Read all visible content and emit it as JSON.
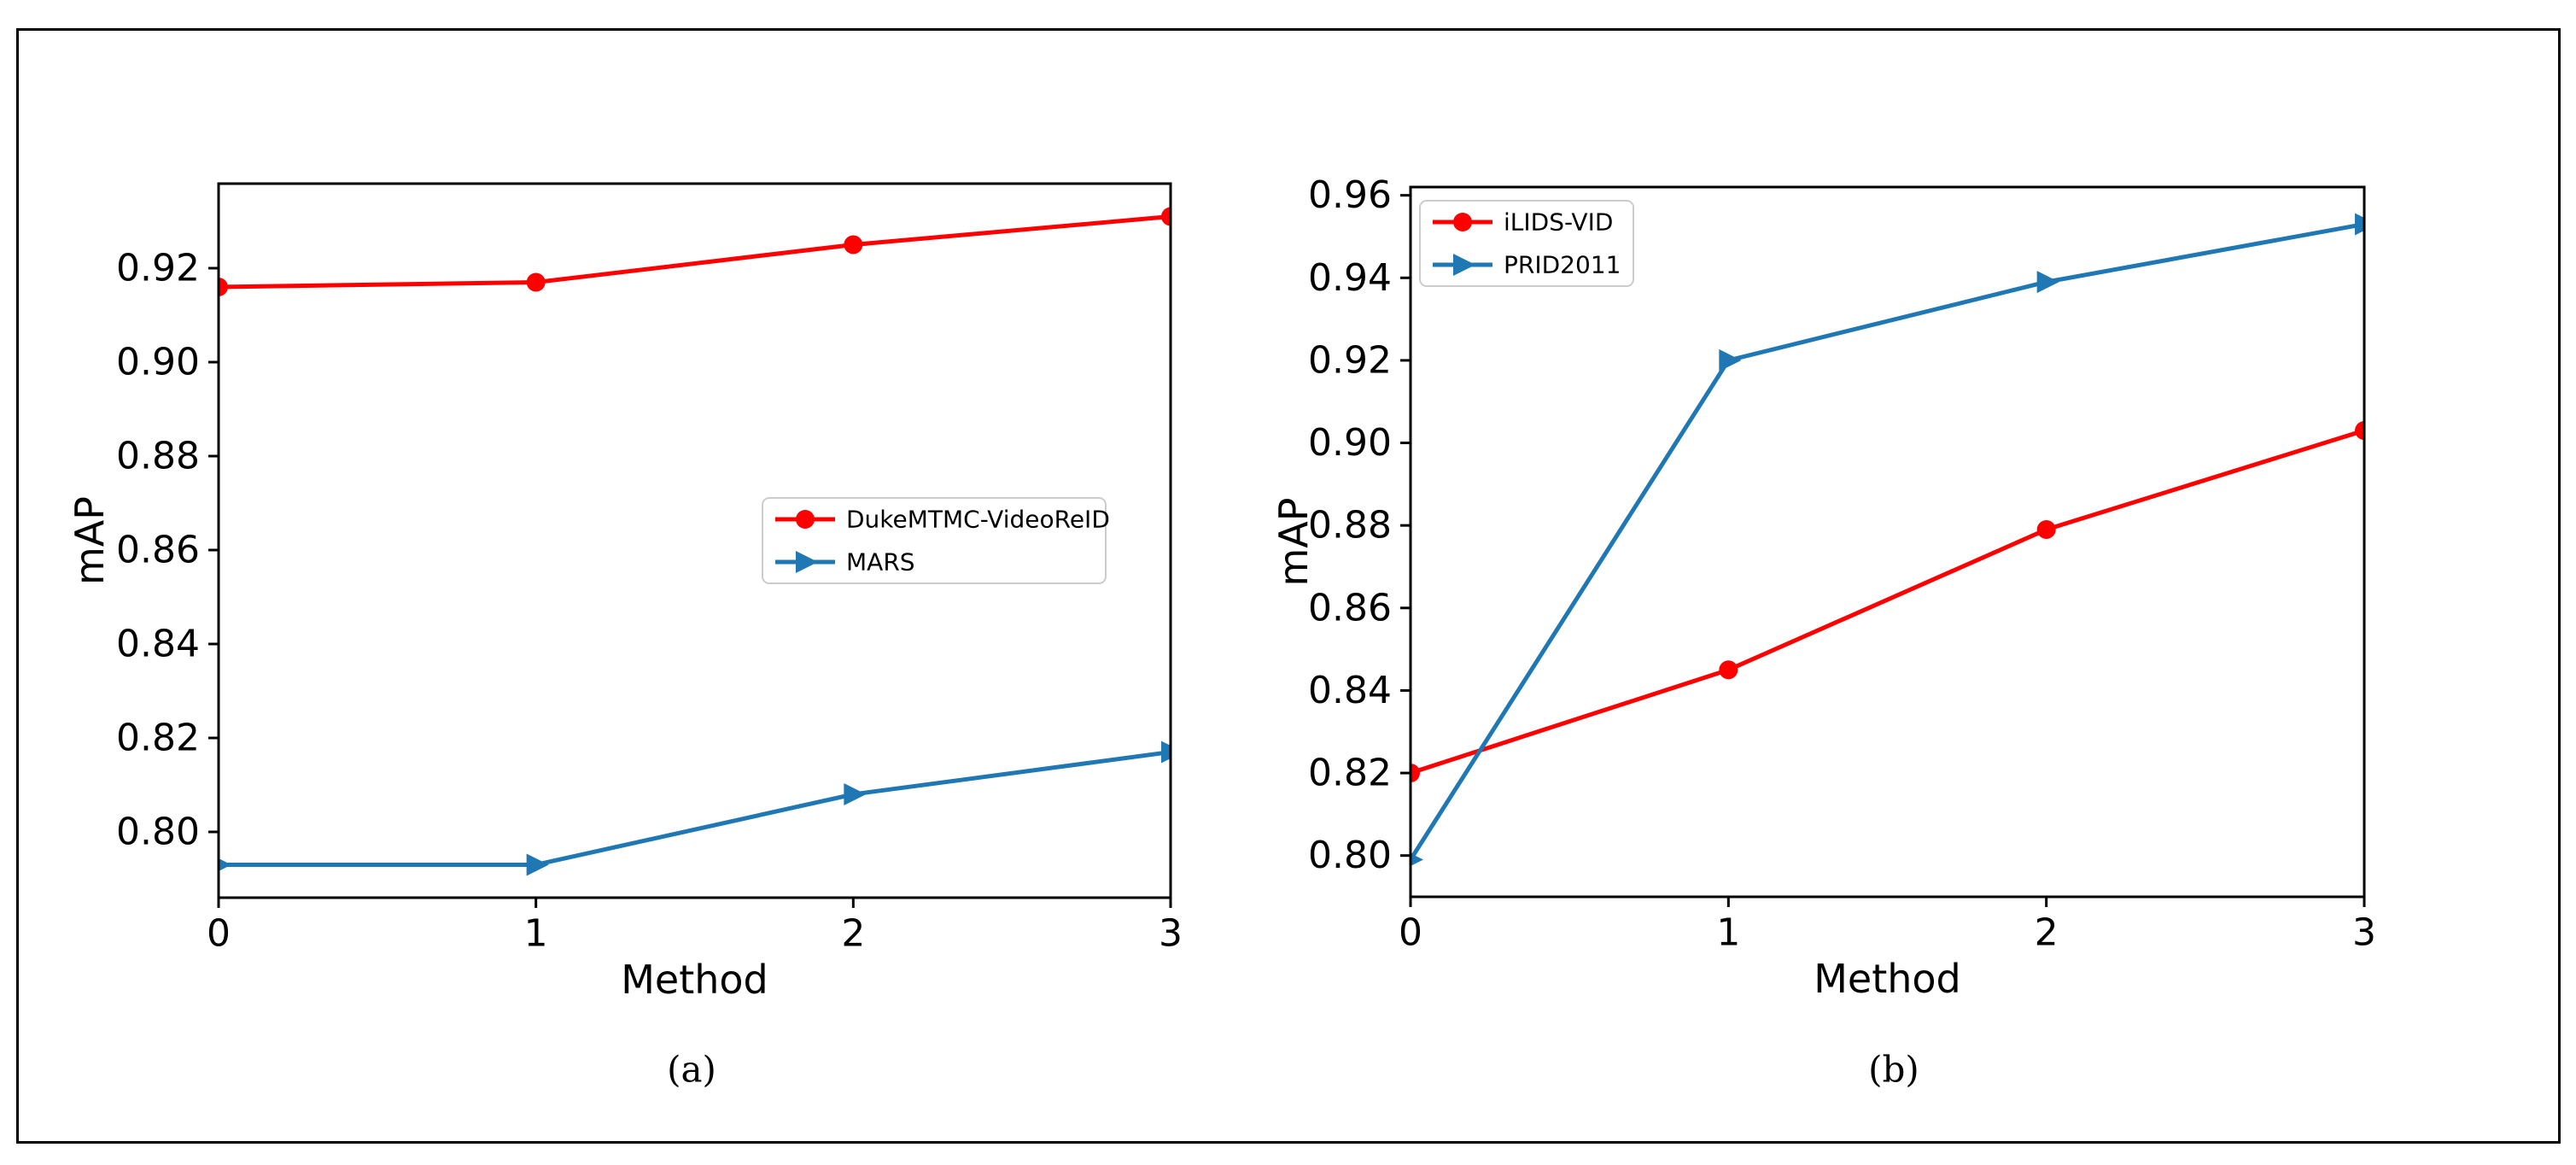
{
  "figure": {
    "background": "#ffffff",
    "border_color": "#000000",
    "text_color": "#000000"
  },
  "chart_data": [
    {
      "id": "a",
      "type": "line",
      "caption": "(a)",
      "xlabel": "Method",
      "ylabel": "mAP",
      "x": [
        0,
        1,
        2,
        3
      ],
      "xtick_labels": [
        "0",
        "1",
        "2",
        "3"
      ],
      "xlim": [
        0,
        3
      ],
      "ylim": [
        0.786,
        0.938
      ],
      "ytick_values": [
        0.8,
        0.82,
        0.84,
        0.86,
        0.88,
        0.9,
        0.92
      ],
      "ytick_labels": [
        "0.80",
        "0.82",
        "0.84",
        "0.86",
        "0.88",
        "0.90",
        "0.92"
      ],
      "grid": false,
      "legend_position": "center-right",
      "series": [
        {
          "name": "DukeMTMC-VideoReID",
          "color": "#ff0000",
          "marker": "circle",
          "values": [
            0.916,
            0.917,
            0.925,
            0.931
          ]
        },
        {
          "name": "MARS",
          "color": "#1f77b4",
          "marker": "triangle-right",
          "values": [
            0.793,
            0.793,
            0.808,
            0.817
          ]
        }
      ]
    },
    {
      "id": "b",
      "type": "line",
      "caption": "(b)",
      "xlabel": "Method",
      "ylabel": "mAP",
      "x": [
        0,
        1,
        2,
        3
      ],
      "xtick_labels": [
        "0",
        "1",
        "2",
        "3"
      ],
      "xlim": [
        0,
        3
      ],
      "ylim": [
        0.79,
        0.962
      ],
      "ytick_values": [
        0.8,
        0.82,
        0.84,
        0.86,
        0.88,
        0.9,
        0.92,
        0.94,
        0.96
      ],
      "ytick_labels": [
        "0.80",
        "0.82",
        "0.84",
        "0.86",
        "0.88",
        "0.90",
        "0.92",
        "0.94",
        "0.96"
      ],
      "grid": false,
      "legend_position": "upper-left",
      "series": [
        {
          "name": "iLIDS-VID",
          "color": "#ff0000",
          "marker": "circle",
          "values": [
            0.82,
            0.845,
            0.879,
            0.903
          ]
        },
        {
          "name": "PRID2011",
          "color": "#1f77b4",
          "marker": "triangle-right",
          "values": [
            0.799,
            0.92,
            0.939,
            0.953
          ]
        }
      ]
    }
  ],
  "legend": {
    "border_color": "#cccccc",
    "fill_color": "#ffffff"
  }
}
